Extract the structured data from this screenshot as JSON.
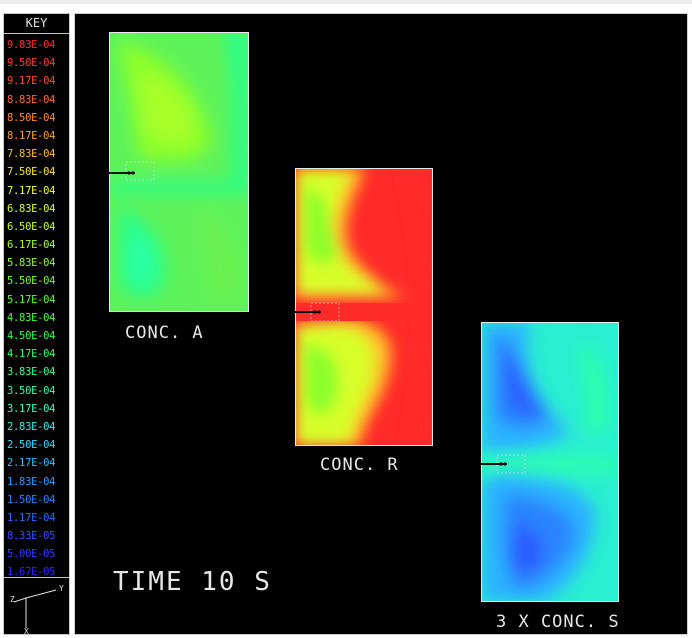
{
  "key": {
    "title": "KEY",
    "entries": [
      {
        "label": "9.83E-04",
        "color": "#ff2a2a"
      },
      {
        "label": "9.50E-04",
        "color": "#ff3b2a"
      },
      {
        "label": "9.17E-04",
        "color": "#ff4c2a"
      },
      {
        "label": "8.83E-04",
        "color": "#ff6a2a"
      },
      {
        "label": "8.50E-04",
        "color": "#ff8a2a"
      },
      {
        "label": "8.17E-04",
        "color": "#ffa02a"
      },
      {
        "label": "7.83E-04",
        "color": "#ffbe2a"
      },
      {
        "label": "7.50E-04",
        "color": "#ffe02a"
      },
      {
        "label": "7.17E-04",
        "color": "#f2ff2a"
      },
      {
        "label": "6.83E-04",
        "color": "#d8ff2a"
      },
      {
        "label": "6.50E-04",
        "color": "#c2ff2a"
      },
      {
        "label": "6.17E-04",
        "color": "#a8ff2a"
      },
      {
        "label": "5.83E-04",
        "color": "#8cff2a"
      },
      {
        "label": "5.50E-04",
        "color": "#74ff2a"
      },
      {
        "label": "5.17E-04",
        "color": "#5cff2a"
      },
      {
        "label": "4.83E-04",
        "color": "#44ff3a"
      },
      {
        "label": "4.50E-04",
        "color": "#2aff4a"
      },
      {
        "label": "4.17E-04",
        "color": "#2aff6a"
      },
      {
        "label": "3.83E-04",
        "color": "#2aff8c"
      },
      {
        "label": "3.50E-04",
        "color": "#2affaa"
      },
      {
        "label": "3.17E-04",
        "color": "#2affc8"
      },
      {
        "label": "2.83E-04",
        "color": "#2aefe6"
      },
      {
        "label": "2.50E-04",
        "color": "#2adcff"
      },
      {
        "label": "2.17E-04",
        "color": "#2abcff"
      },
      {
        "label": "1.83E-04",
        "color": "#2a9cff"
      },
      {
        "label": "1.50E-04",
        "color": "#2a84ff"
      },
      {
        "label": "1.17E-04",
        "color": "#2a6cff"
      },
      {
        "label": "8.33E-05",
        "color": "#2a54ff"
      },
      {
        "label": "5.00E-05",
        "color": "#2a40ff"
      },
      {
        "label": "1.67E-05",
        "color": "#2a2aff"
      }
    ]
  },
  "axes": {
    "y": "Y",
    "z": "Z",
    "x": "X"
  },
  "plots": {
    "a": {
      "label": "CONC. A"
    },
    "r": {
      "label": "CONC. R"
    },
    "s": {
      "label": "3 X CONC. S"
    }
  },
  "time_label": "TIME 10 S"
}
